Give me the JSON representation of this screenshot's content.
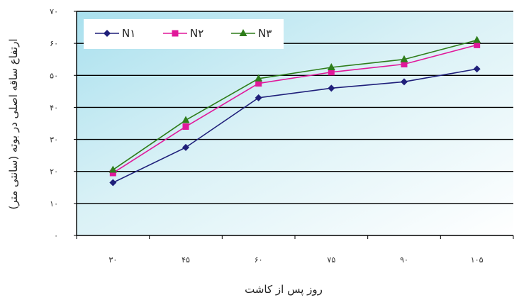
{
  "chart_data": {
    "type": "line",
    "xlabel": "روز پس از کاشت",
    "ylabel": "ارتفاع ساقه اصلی در بوته (سانتی متر)",
    "x": [
      30,
      45,
      60,
      75,
      90,
      105
    ],
    "x_tick_labels": [
      "۳۰",
      "۴۵",
      "۶۰",
      "۷۵",
      "۹۰",
      "۱۰۵"
    ],
    "ylim": [
      0,
      70
    ],
    "y_ticks": [
      0,
      10,
      20,
      30,
      40,
      50,
      60,
      70
    ],
    "y_tick_labels": [
      "۰",
      "۱۰",
      "۲۰",
      "۳۰",
      "۴۰",
      "۵۰",
      "۶۰",
      "۷۰"
    ],
    "grid": true,
    "legend_position": "top-left",
    "series": [
      {
        "name": "N۱",
        "values": [
          16.5,
          27.5,
          43,
          46,
          48,
          52
        ],
        "color": "#1f1f7a",
        "marker": "diamond"
      },
      {
        "name": "N۲",
        "values": [
          19.5,
          34,
          47.5,
          51,
          53.5,
          59.5
        ],
        "color": "#e0189a",
        "marker": "square"
      },
      {
        "name": "N۳",
        "values": [
          20.5,
          36,
          49,
          52.5,
          55,
          61
        ],
        "color": "#2e7d1a",
        "marker": "triangle"
      }
    ]
  }
}
